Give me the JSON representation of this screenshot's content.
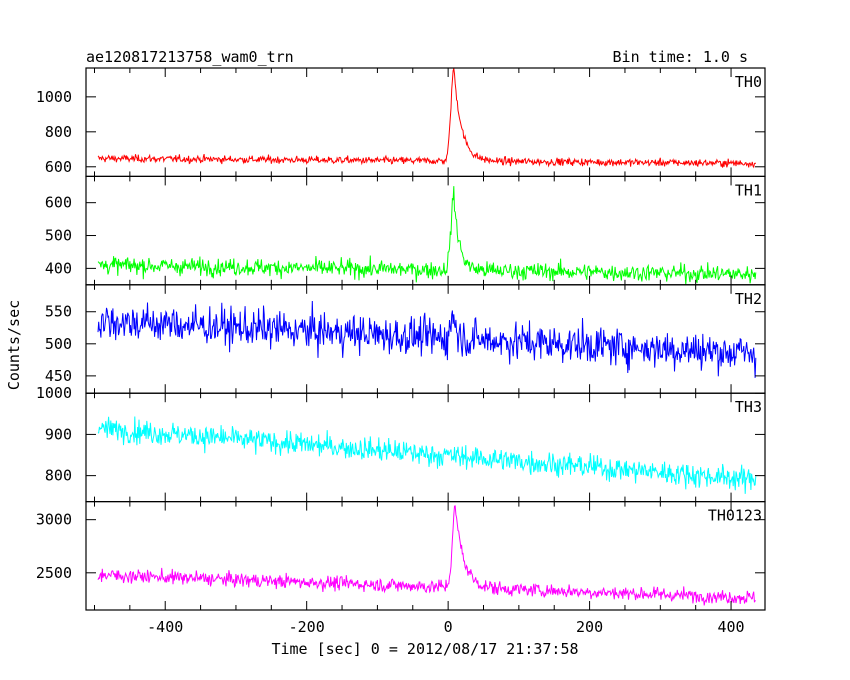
{
  "header": {
    "title": "ae120817213758_wam0_trn",
    "bin_time": "Bin time: 1.0 s"
  },
  "chart_data": {
    "type": "line",
    "xlabel": "Time [sec] 0 = 2012/08/17 21:37:58",
    "ylabel": "Counts/sec",
    "xlim": [
      -512,
      448
    ],
    "xticks": [
      -400,
      -200,
      0,
      200,
      400
    ],
    "x_range": [
      -495,
      435
    ],
    "grid": false,
    "panels": [
      {
        "name": "TH0",
        "color": "#ff0000",
        "ylim": [
          545,
          1165
        ],
        "yticks": [
          600,
          800,
          1000
        ],
        "baseline_start": 648,
        "baseline_end": 620,
        "noise": 18,
        "peak": {
          "t": 8,
          "height": 530,
          "rise": 4,
          "decay": 11,
          "floor": 600
        }
      },
      {
        "name": "TH1",
        "color": "#00ff00",
        "ylim": [
          350,
          680
        ],
        "yticks": [
          400,
          500,
          600
        ],
        "baseline_start": 410,
        "baseline_end": 382,
        "noise": 22,
        "peak": {
          "t": 8,
          "height": 225,
          "rise": 4,
          "decay": 8,
          "floor": 385
        }
      },
      {
        "name": "TH2",
        "color": "#0000ff",
        "ylim": [
          423,
          592
        ],
        "yticks": [
          450,
          500,
          550
        ],
        "baseline_start": 536,
        "baseline_end": 485,
        "noise": 25,
        "peak": {
          "t": 6,
          "height": 45,
          "rise": 2,
          "decay": 5,
          "floor": 485
        }
      },
      {
        "name": "TH3",
        "color": "#00ffff",
        "ylim": [
          737,
          1000
        ],
        "yticks": [
          800,
          900,
          1000
        ],
        "baseline_start": 915,
        "baseline_end": 790,
        "noise": 24,
        "peak": null
      },
      {
        "name": "TH0123",
        "color": "#ff00ff",
        "ylim": [
          2150,
          3170
        ],
        "yticks": [
          2500,
          3000
        ],
        "baseline_start": 2480,
        "baseline_end": 2265,
        "noise": 55,
        "peak": {
          "t": 10,
          "height": 750,
          "rise": 4,
          "decay": 12,
          "floor": 2285
        }
      }
    ]
  }
}
